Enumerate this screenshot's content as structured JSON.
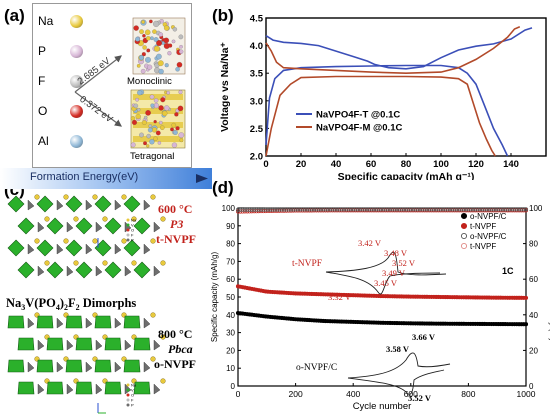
{
  "panels": {
    "a": "(a)",
    "b": "(b)",
    "c": "(c)",
    "d": "(d)"
  },
  "panel_a": {
    "atoms": [
      {
        "label": "Na",
        "color": "#e8c93c"
      },
      {
        "label": "P",
        "color": "#d7b6d6"
      },
      {
        "label": "F",
        "color": "#bcbcbc"
      },
      {
        "label": "O",
        "color": "#d42a22"
      },
      {
        "label": "Al",
        "color": "#8fb7d6"
      }
    ],
    "energy_upper": "2.685 eV",
    "energy_lower": "0.372 eV",
    "monoclinic": "Monoclinic",
    "tetragonal": "Tetragonal",
    "formation_energy": "Formation Energy(eV)"
  },
  "panel_c": {
    "top_temp": "600 °C",
    "top_space_group": "P3",
    "top_phase": "t-NVPF",
    "middle_title": "Na3V(PO4)2F2 Dimorphs",
    "bottom_temp": "800 °C",
    "bottom_space_group": "Pbca",
    "bottom_phase": "o-NVPF",
    "legend_small": [
      "Na",
      "V",
      "O",
      "F",
      "P"
    ]
  },
  "chart_data": [
    {
      "type": "line",
      "panel": "b",
      "xlabel": "Specific capacity (mAh g⁻¹)",
      "ylabel": "Voltage vs Na/Na⁺",
      "xlim": [
        0,
        160
      ],
      "ylim": [
        2.0,
        4.5
      ],
      "xticks": [
        0,
        20,
        40,
        60,
        80,
        100,
        120,
        140
      ],
      "yticks": [
        2.0,
        2.5,
        3.0,
        3.5,
        4.0,
        4.5
      ],
      "series": [
        {
          "name": "NaVPO4F-T @0.1C",
          "color": "#3b4fb8",
          "charge": [
            [
              0,
              4.18
            ],
            [
              4,
              4.1
            ],
            [
              10,
              4.06
            ],
            [
              20,
              4.04
            ],
            [
              30,
              4.0
            ],
            [
              40,
              3.9
            ],
            [
              50,
              3.8
            ],
            [
              58,
              3.72
            ],
            [
              62,
              3.66
            ],
            [
              70,
              3.6
            ],
            [
              80,
              3.58
            ],
            [
              90,
              3.62
            ],
            [
              100,
              3.78
            ],
            [
              110,
              3.92
            ],
            [
              120,
              3.99
            ],
            [
              130,
              4.03
            ],
            [
              140,
              4.12
            ],
            [
              148,
              4.28
            ],
            [
              152,
              4.32
            ]
          ],
          "discharge": [
            [
              0,
              2.2
            ],
            [
              2,
              3.05
            ],
            [
              5,
              3.4
            ],
            [
              10,
              3.55
            ],
            [
              20,
              3.6
            ],
            [
              40,
              3.62
            ],
            [
              60,
              3.63
            ],
            [
              80,
              3.64
            ],
            [
              100,
              3.64
            ],
            [
              110,
              3.6
            ],
            [
              115,
              3.5
            ],
            [
              120,
              3.3
            ],
            [
              125,
              2.9
            ],
            [
              130,
              2.5
            ],
            [
              135,
              2.2
            ],
            [
              138,
              2.0
            ]
          ]
        },
        {
          "name": "NaVPO4F-M @0.1C",
          "color": "#b24a2a",
          "charge": [
            [
              0,
              4.05
            ],
            [
              3,
              3.9
            ],
            [
              6,
              3.7
            ],
            [
              10,
              3.6
            ],
            [
              20,
              3.58
            ],
            [
              40,
              3.55
            ],
            [
              60,
              3.52
            ],
            [
              80,
              3.5
            ],
            [
              100,
              3.52
            ],
            [
              110,
              3.6
            ],
            [
              120,
              3.75
            ],
            [
              130,
              3.95
            ],
            [
              138,
              4.15
            ],
            [
              142,
              4.3
            ],
            [
              145,
              4.34
            ]
          ],
          "discharge": [
            [
              0,
              2.0
            ],
            [
              3,
              2.5
            ],
            [
              8,
              3.1
            ],
            [
              14,
              3.3
            ],
            [
              20,
              3.42
            ],
            [
              40,
              3.44
            ],
            [
              60,
              3.44
            ],
            [
              80,
              3.44
            ],
            [
              100,
              3.43
            ],
            [
              110,
              3.4
            ],
            [
              115,
              3.3
            ],
            [
              118,
              3.0
            ],
            [
              122,
              2.6
            ],
            [
              126,
              2.3
            ],
            [
              129,
              2.1
            ],
            [
              131,
              2.0
            ]
          ]
        }
      ]
    },
    {
      "type": "scatter",
      "panel": "d",
      "xlabel": "Cycle number",
      "ylabel": "Specific capacity (mAh/g)",
      "ylabel_right": "Coulombic efficiency (%)",
      "xlim": [
        0,
        1000
      ],
      "ylim": [
        0,
        100
      ],
      "ylim_right": [
        0,
        100
      ],
      "xticks": [
        0,
        200,
        400,
        600,
        800,
        1000
      ],
      "yticks": [
        0,
        10,
        20,
        30,
        40,
        50,
        60,
        70,
        80,
        90,
        100
      ],
      "yticks_right": [
        0,
        20,
        40,
        60,
        80,
        100
      ],
      "rate_label": "1C",
      "legend": [
        {
          "name": "o-NVPF/C",
          "marker": "filled",
          "color": "#000000"
        },
        {
          "name": "t-NVPF",
          "marker": "filled",
          "color": "#c2221c"
        },
        {
          "name": "o-NVPF/C",
          "marker": "open",
          "color": "#555555"
        },
        {
          "name": "t-NVPF",
          "marker": "open",
          "color": "#e08a86"
        }
      ],
      "series": [
        {
          "name": "t-NVPF capacity",
          "axis": "left",
          "color": "#c2221c",
          "points": [
            [
              0,
              56
            ],
            [
              100,
              53
            ],
            [
              200,
              52
            ],
            [
              300,
              51.5
            ],
            [
              400,
              51
            ],
            [
              500,
              50.5
            ],
            [
              600,
              50.2
            ],
            [
              700,
              50
            ],
            [
              800,
              49.8
            ],
            [
              900,
              49.6
            ],
            [
              1000,
              49.5
            ]
          ]
        },
        {
          "name": "o-NVPF/C capacity",
          "axis": "left",
          "color": "#000000",
          "points": [
            [
              0,
              41
            ],
            [
              100,
              39
            ],
            [
              200,
              37.5
            ],
            [
              300,
              36.5
            ],
            [
              400,
              36
            ],
            [
              500,
              35.5
            ],
            [
              600,
              35.2
            ],
            [
              700,
              35
            ],
            [
              800,
              34.9
            ],
            [
              900,
              34.8
            ],
            [
              1000,
              34.7
            ]
          ]
        },
        {
          "name": "t-NVPF efficiency",
          "axis": "right",
          "color": "#c2221c",
          "points": [
            [
              0,
              98
            ],
            [
              200,
              98.6
            ],
            [
              400,
              98.7
            ],
            [
              600,
              98.7
            ],
            [
              800,
              98.7
            ],
            [
              1000,
              98.7
            ]
          ]
        },
        {
          "name": "o-NVPF/C efficiency",
          "axis": "right",
          "color": "#555555",
          "points": [
            [
              0,
              99
            ],
            [
              200,
              99.2
            ],
            [
              400,
              99.2
            ],
            [
              600,
              99.2
            ],
            [
              800,
              99.2
            ],
            [
              1000,
              99.2
            ]
          ]
        }
      ],
      "inset_t_nvpf": {
        "label": "t-NVPF",
        "peaks": [
          "3.42 V",
          "3.48 V",
          "3.52 V",
          "3.49 V",
          "3.45 V",
          "3.32 V"
        ]
      },
      "inset_o_nvpf": {
        "label": "o-NVPF/C",
        "peaks": [
          "3.66 V",
          "3.58 V",
          "3.52 V"
        ]
      }
    }
  ]
}
